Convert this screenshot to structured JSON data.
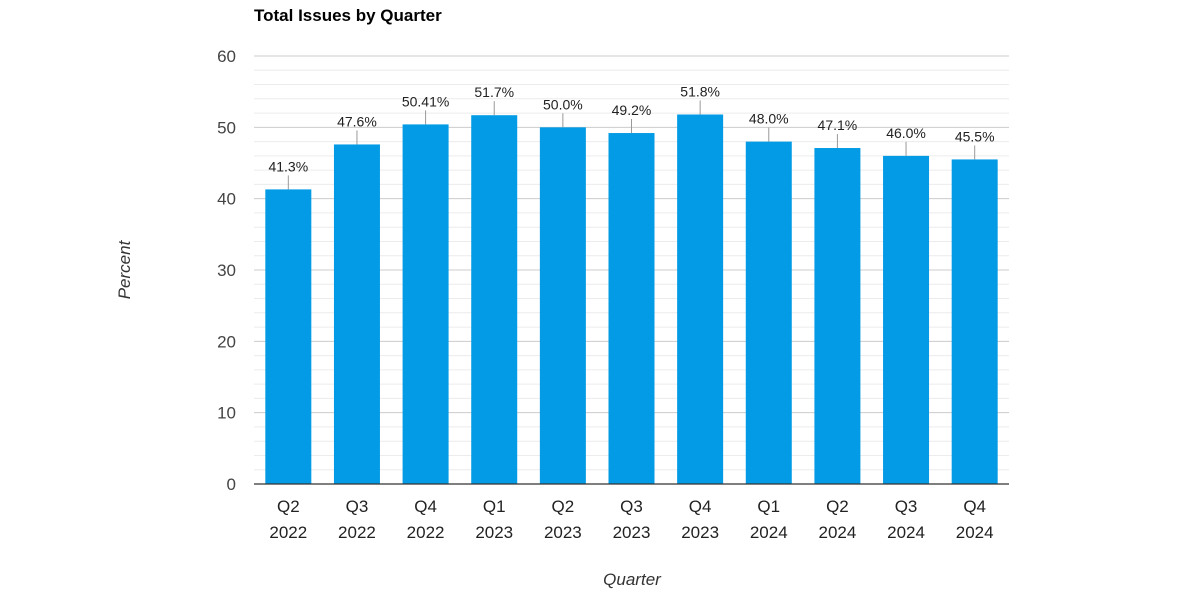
{
  "chart_data": {
    "type": "bar",
    "title": "Total Issues by Quarter",
    "xlabel": "Quarter",
    "ylabel": "Percent",
    "ylim": [
      0,
      60
    ],
    "yticks": [
      0,
      10,
      20,
      30,
      40,
      50,
      60
    ],
    "grid": true,
    "bar_color": "#039BE5",
    "categories": [
      [
        "Q2",
        "2022"
      ],
      [
        "Q3",
        "2022"
      ],
      [
        "Q4",
        "2022"
      ],
      [
        "Q1",
        "2023"
      ],
      [
        "Q2",
        "2023"
      ],
      [
        "Q3",
        "2023"
      ],
      [
        "Q4",
        "2023"
      ],
      [
        "Q1",
        "2024"
      ],
      [
        "Q2",
        "2024"
      ],
      [
        "Q3",
        "2024"
      ],
      [
        "Q4",
        "2024"
      ]
    ],
    "values": [
      41.3,
      47.6,
      50.41,
      51.7,
      50.0,
      49.2,
      51.8,
      48.0,
      47.1,
      46.0,
      45.5
    ],
    "data_labels": [
      "41.3%",
      "47.6%",
      "50.41%",
      "51.7%",
      "50.0%",
      "49.2%",
      "51.8%",
      "48.0%",
      "47.1%",
      "46.0%",
      "45.5%"
    ]
  }
}
